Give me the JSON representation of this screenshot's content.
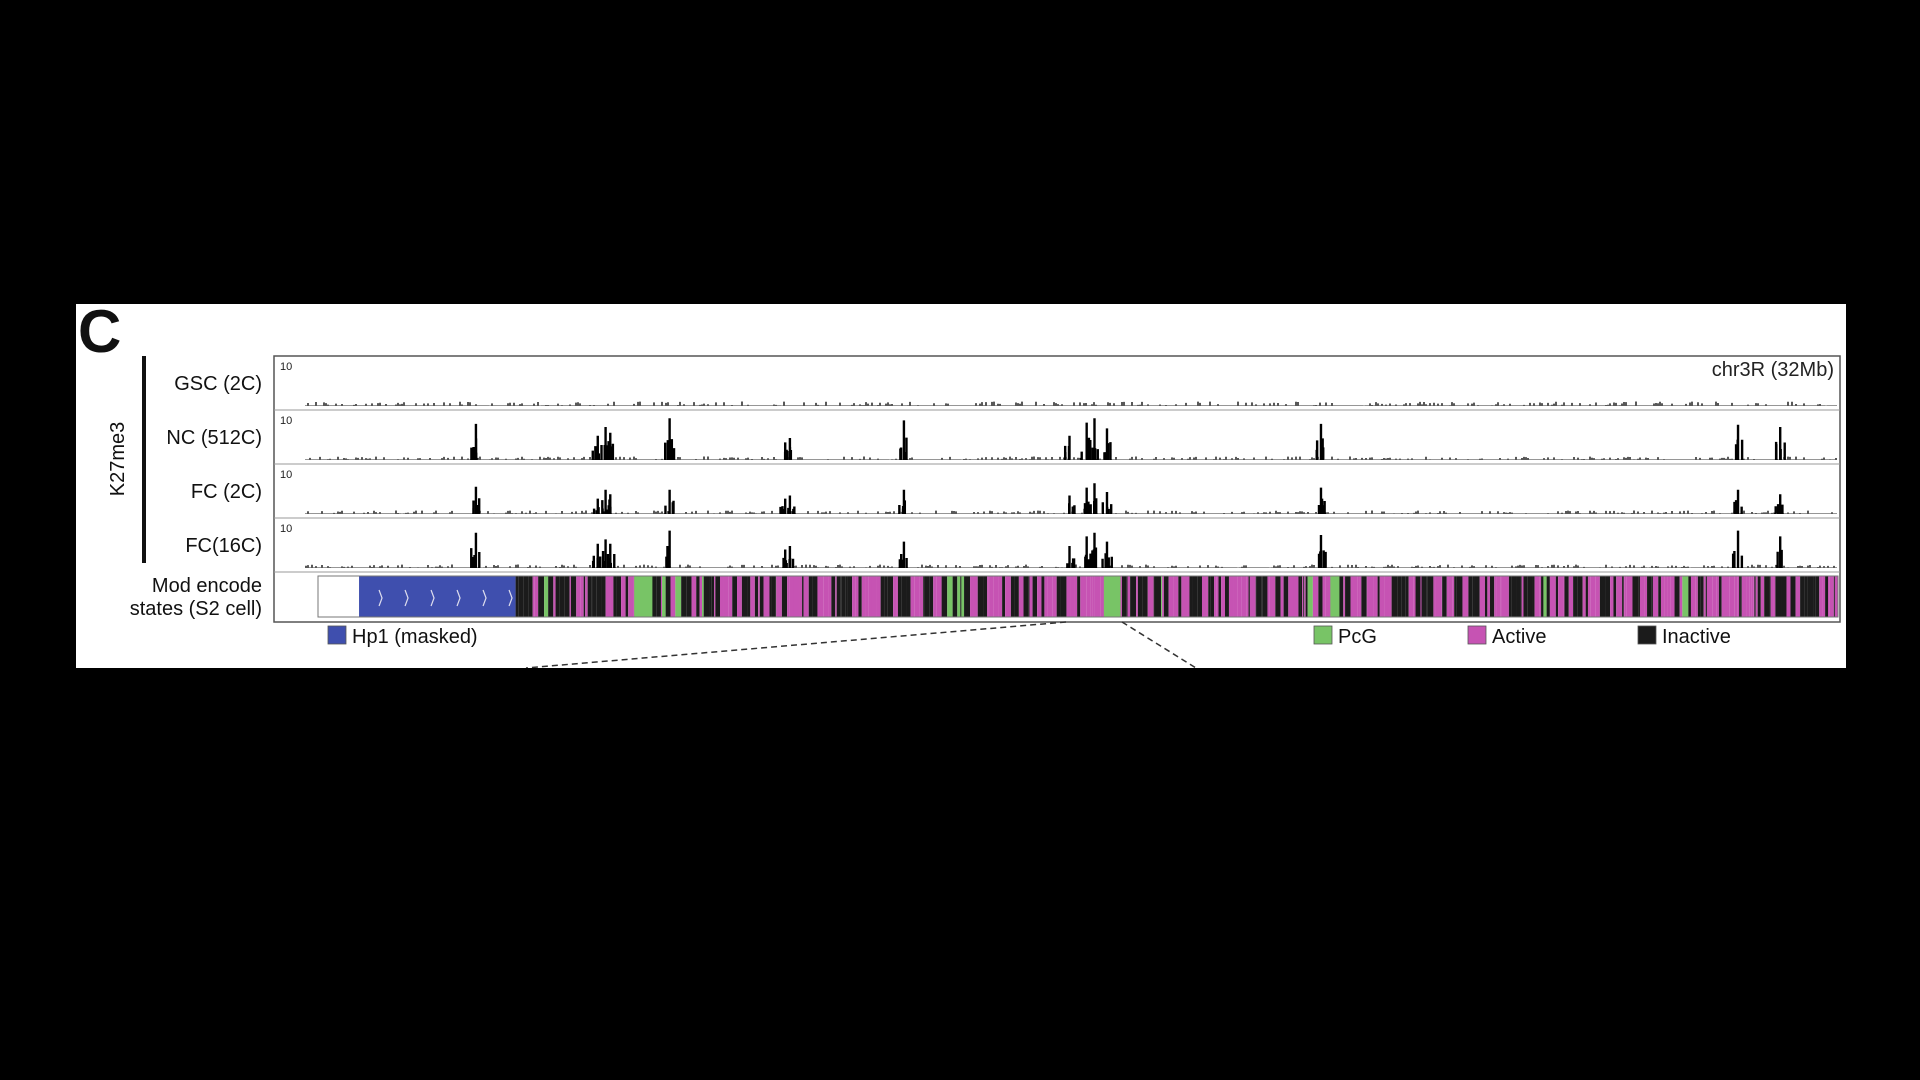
{
  "panel_label": "C",
  "chart_data": {
    "type": "area",
    "mark_label": "K27me3",
    "region_label": "chr3R (32Mb)",
    "scale_max": "10",
    "tracks": [
      {
        "name": "GSC (2C)",
        "peaks": []
      },
      {
        "name": "NC (512C)",
        "peaks": [
          [
            0.128,
            0.82
          ],
          [
            0.206,
            0.55
          ],
          [
            0.211,
            0.75
          ],
          [
            0.214,
            0.62
          ],
          [
            0.252,
            0.95
          ],
          [
            0.326,
            0.4
          ],
          [
            0.329,
            0.5
          ],
          [
            0.402,
            0.9
          ],
          [
            0.508,
            0.55
          ],
          [
            0.519,
            0.85
          ],
          [
            0.524,
            0.95
          ],
          [
            0.532,
            0.72
          ],
          [
            0.669,
            0.82
          ],
          [
            0.936,
            0.8
          ],
          [
            0.963,
            0.75
          ]
        ]
      },
      {
        "name": "FC (2C)",
        "peaks": [
          [
            0.128,
            0.62
          ],
          [
            0.206,
            0.35
          ],
          [
            0.211,
            0.55
          ],
          [
            0.214,
            0.45
          ],
          [
            0.252,
            0.55
          ],
          [
            0.326,
            0.35
          ],
          [
            0.329,
            0.42
          ],
          [
            0.402,
            0.55
          ],
          [
            0.508,
            0.42
          ],
          [
            0.519,
            0.6
          ],
          [
            0.524,
            0.7
          ],
          [
            0.532,
            0.5
          ],
          [
            0.669,
            0.6
          ],
          [
            0.936,
            0.55
          ],
          [
            0.963,
            0.45
          ]
        ]
      },
      {
        "name": "FC(16C)",
        "peaks": [
          [
            0.128,
            0.8
          ],
          [
            0.206,
            0.55
          ],
          [
            0.211,
            0.65
          ],
          [
            0.214,
            0.55
          ],
          [
            0.252,
            0.85
          ],
          [
            0.326,
            0.42
          ],
          [
            0.329,
            0.5
          ],
          [
            0.402,
            0.6
          ],
          [
            0.508,
            0.5
          ],
          [
            0.519,
            0.72
          ],
          [
            0.524,
            0.8
          ],
          [
            0.532,
            0.6
          ],
          [
            0.669,
            0.75
          ],
          [
            0.936,
            0.85
          ],
          [
            0.963,
            0.72
          ]
        ]
      }
    ],
    "states_track_label": [
      "Mod encode",
      "states (S2 cell)"
    ],
    "state_segments": [
      {
        "state": "Hp1",
        "start": 0.027,
        "end": 0.13
      },
      {
        "state": "PcG",
        "start": 0.208,
        "end": 0.22
      },
      {
        "state": "PcG",
        "start": 0.517,
        "end": 0.528
      },
      {
        "state": "PcG",
        "start": 0.666,
        "end": 0.672
      }
    ],
    "legend": [
      {
        "label": "Hp1 (masked)",
        "color": "#3f4fae"
      },
      {
        "label": "PcG",
        "color": "#78c466"
      },
      {
        "label": "Active",
        "color": "#c653b3"
      },
      {
        "label": "Inactive",
        "color": "#1b1b1b"
      }
    ]
  }
}
